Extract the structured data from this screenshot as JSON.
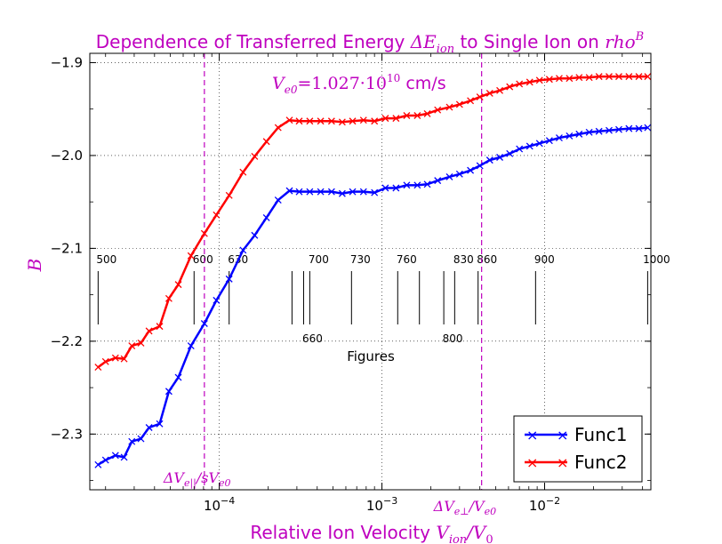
{
  "chart_data": {
    "type": "line",
    "title": "Dependence of Transferred Energy ΔE_ion to Single Ion on rho^B",
    "title_parts": {
      "prefix": "Dependence of Transferred Energy ",
      "sym": "ΔE",
      "sub": "ion",
      "middle": " to Single Ion on ",
      "sym2": "rho",
      "sup": "B"
    },
    "xlabel": "Relative Ion Velocity  V_ion/V_0",
    "xlabel_parts": {
      "text": "Relative Ion Velocity  ",
      "sym": "V",
      "sub": "ion",
      "tail": "/V",
      "tail_sub": "0"
    },
    "ylabel": "B",
    "x_scale": "log",
    "xlim": [
      1.6e-05,
      0.045
    ],
    "ylim": [
      -2.36,
      -1.89
    ],
    "grid": true,
    "legend_position": "bottom-right",
    "annotation_ve0": {
      "prefix": "V",
      "sub": "e0",
      "eq": "=1.027·10",
      "sup": "10",
      "unit": " cm/s"
    },
    "vlines": [
      {
        "x": 8.1e-05,
        "label": "ΔV_e||/sV_e0",
        "parts": {
          "sym": "ΔV",
          "sub": "e||",
          "tail": "/sV",
          "tail_sub": "e0"
        }
      },
      {
        "x": 0.0041,
        "label": "ΔV_e⊥/V_e0",
        "parts": {
          "sym": "ΔV",
          "sub": "e⊥",
          "tail": "/V",
          "tail_sub": "e0"
        }
      }
    ],
    "figures_label": "Figures",
    "figure_markers": [
      {
        "x": 1.8e-05,
        "label": "500",
        "row": "upper"
      },
      {
        "x": 7e-05,
        "label": "600",
        "row": "upper"
      },
      {
        "x": 0.000115,
        "label": "630",
        "row": "upper"
      },
      {
        "x": 0.00028,
        "label": "",
        "row": "upper"
      },
      {
        "x": 0.00033,
        "label": "660",
        "row": "lower"
      },
      {
        "x": 0.00036,
        "label": "700",
        "row": "upper"
      },
      {
        "x": 0.00065,
        "label": "730",
        "row": "upper"
      },
      {
        "x": 0.00125,
        "label": "760",
        "row": "upper"
      },
      {
        "x": 0.0017,
        "label": "",
        "row": "upper"
      },
      {
        "x": 0.0024,
        "label": "800",
        "row": "lower"
      },
      {
        "x": 0.0039,
        "label": "860",
        "row": "upper"
      },
      {
        "x": 0.0028,
        "label": "830",
        "row": "upper"
      },
      {
        "x": 0.0088,
        "label": "900",
        "row": "upper"
      },
      {
        "x": 0.043,
        "label": "1000",
        "row": "upper"
      }
    ],
    "yticks": [
      -1.9,
      -2.0,
      -2.1,
      -2.2,
      -2.3
    ],
    "ytick_labels": [
      "−1.9",
      "−2.0",
      "−2.1",
      "−2.2",
      "−2.3"
    ],
    "xticks": [
      0.0001,
      0.001,
      0.01
    ],
    "xtick_labels": [
      {
        "base": "10",
        "exp": "−4"
      },
      {
        "base": "10",
        "exp": "−3"
      },
      {
        "base": "10",
        "exp": "−2"
      }
    ],
    "series": [
      {
        "name": "Func1",
        "color": "#0000ff",
        "x": [
          1.8e-05,
          2e-05,
          2.3e-05,
          2.6e-05,
          2.9e-05,
          3.3e-05,
          3.7e-05,
          4.3e-05,
          4.9e-05,
          5.6e-05,
          6.7e-05,
          8.1e-05,
          9.6e-05,
          0.000115,
          0.00014,
          0.000165,
          0.000195,
          0.00023,
          0.00027,
          0.00031,
          0.00036,
          0.00042,
          0.00049,
          0.00057,
          0.00066,
          0.00077,
          0.0009,
          0.00105,
          0.00122,
          0.00142,
          0.00165,
          0.0019,
          0.0022,
          0.0026,
          0.003,
          0.0035,
          0.004,
          0.0046,
          0.0053,
          0.0061,
          0.007,
          0.0081,
          0.0093,
          0.0107,
          0.0123,
          0.0142,
          0.0163,
          0.0188,
          0.0216,
          0.0249,
          0.0286,
          0.033,
          0.038,
          0.043
        ],
        "values": [
          -2.333,
          -2.328,
          -2.323,
          -2.325,
          -2.308,
          -2.305,
          -2.293,
          -2.289,
          -2.254,
          -2.239,
          -2.205,
          -2.181,
          -2.156,
          -2.133,
          -2.102,
          -2.086,
          -2.067,
          -2.048,
          -2.038,
          -2.039,
          -2.039,
          -2.039,
          -2.039,
          -2.041,
          -2.039,
          -2.039,
          -2.04,
          -2.035,
          -2.035,
          -2.032,
          -2.032,
          -2.031,
          -2.027,
          -2.023,
          -2.02,
          -2.016,
          -2.011,
          -2.005,
          -2.002,
          -1.998,
          -1.993,
          -1.99,
          -1.987,
          -1.984,
          -1.981,
          -1.979,
          -1.977,
          -1.975,
          -1.974,
          -1.973,
          -1.972,
          -1.971,
          -1.971,
          -1.97
        ]
      },
      {
        "name": "Func2",
        "color": "#ff0000",
        "x": [
          1.8e-05,
          2e-05,
          2.3e-05,
          2.6e-05,
          2.9e-05,
          3.3e-05,
          3.7e-05,
          4.3e-05,
          4.9e-05,
          5.6e-05,
          6.7e-05,
          8.1e-05,
          9.6e-05,
          0.000115,
          0.00014,
          0.000165,
          0.000195,
          0.00023,
          0.00027,
          0.00031,
          0.00036,
          0.00042,
          0.00049,
          0.00057,
          0.00066,
          0.00077,
          0.0009,
          0.00105,
          0.00122,
          0.00142,
          0.00165,
          0.0019,
          0.0022,
          0.0026,
          0.003,
          0.0035,
          0.004,
          0.0046,
          0.0053,
          0.0061,
          0.007,
          0.0081,
          0.0093,
          0.0107,
          0.0123,
          0.0142,
          0.0163,
          0.0188,
          0.0216,
          0.0249,
          0.0286,
          0.033,
          0.038,
          0.043
        ],
        "values": [
          -2.228,
          -2.222,
          -2.218,
          -2.219,
          -2.205,
          -2.202,
          -2.189,
          -2.184,
          -2.154,
          -2.139,
          -2.108,
          -2.084,
          -2.064,
          -2.043,
          -2.018,
          -2.001,
          -1.985,
          -1.97,
          -1.962,
          -1.963,
          -1.963,
          -1.963,
          -1.963,
          -1.964,
          -1.963,
          -1.962,
          -1.963,
          -1.96,
          -1.96,
          -1.957,
          -1.957,
          -1.955,
          -1.951,
          -1.948,
          -1.945,
          -1.941,
          -1.937,
          -1.933,
          -1.93,
          -1.926,
          -1.923,
          -1.921,
          -1.919,
          -1.918,
          -1.917,
          -1.917,
          -1.916,
          -1.916,
          -1.915,
          -1.915,
          -1.915,
          -1.915,
          -1.915,
          -1.915
        ]
      }
    ]
  }
}
